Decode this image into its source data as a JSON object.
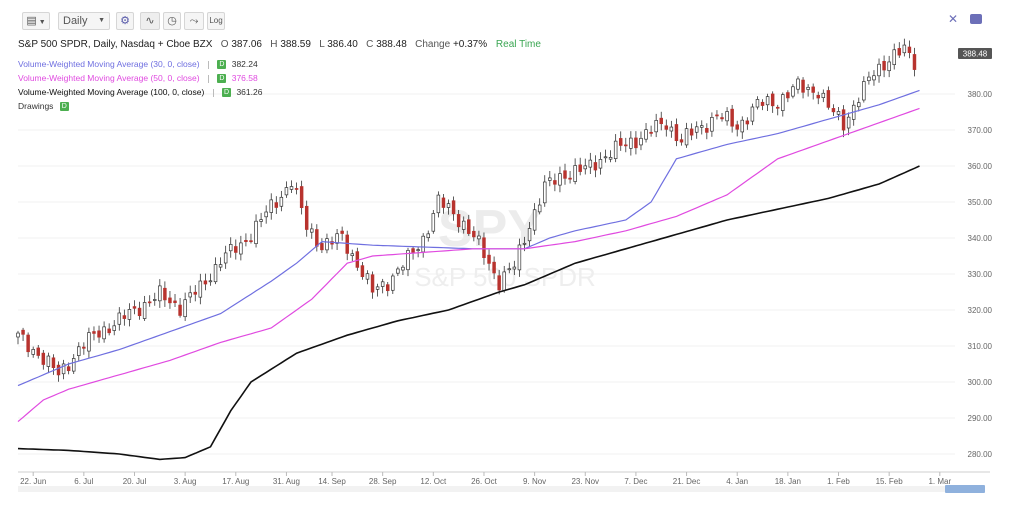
{
  "toolbar": {
    "interval": "Daily",
    "log_label": "Log"
  },
  "header": {
    "symbol": "S&P 500 SPDR, Daily, Nasdaq + Cboe BZX",
    "o_label": "O",
    "o": "387.06",
    "h_label": "H",
    "h": "388.59",
    "l_label": "L",
    "l": "386.40",
    "c_label": "C",
    "c": "388.48",
    "change_label": "Change",
    "change": "+0.37%",
    "realtime": "Real Time"
  },
  "legend": [
    {
      "name": "Volume-Weighted Moving Average (30, 0, close)",
      "value": "382.24",
      "color": "#6f6fe0"
    },
    {
      "name": "Volume-Weighted Moving Average (50, 0, close)",
      "value": "376.58",
      "color": "#e04ae0"
    },
    {
      "name": "Volume-Weighted Moving Average (100, 0, close)",
      "value": "361.26",
      "color": "#111111"
    },
    {
      "name": "Drawings",
      "value": "",
      "color": "#555555"
    }
  ],
  "chart_data": {
    "type": "candlestick",
    "watermark_symbol": "SPY",
    "watermark_name": "S&P 500 SPDR",
    "last_price": "388.48",
    "ylim": [
      275,
      395
    ],
    "y_ticks": [
      280,
      290,
      300,
      310,
      320,
      330,
      340,
      350,
      360,
      370,
      380
    ],
    "y_tick_labels": [
      "280.00",
      "290.00",
      "300.00",
      "310.00",
      "320.00",
      "330.00",
      "340.00",
      "350.00",
      "360.00",
      "370.00",
      "380.00"
    ],
    "x_ticks": [
      "22. Jun",
      "6. Jul",
      "20. Jul",
      "3. Aug",
      "17. Aug",
      "31. Aug",
      "14. Sep",
      "28. Sep",
      "12. Oct",
      "26. Oct",
      "9. Nov",
      "23. Nov",
      "7. Dec",
      "21. Dec",
      "4. Jan",
      "18. Jan",
      "1. Feb",
      "15. Feb",
      "1. Mar"
    ],
    "x_tick_index": [
      3,
      13,
      23,
      33,
      43,
      53,
      62,
      72,
      82,
      92,
      102,
      112,
      122,
      132,
      142,
      152,
      162,
      172,
      182
    ],
    "x_count": 186,
    "up_color": "#ffffff",
    "down_color": "#b8332e",
    "candles_anchor_close": [
      [
        0,
        312.5
      ],
      [
        4,
        308
      ],
      [
        8,
        302
      ],
      [
        12,
        309
      ],
      [
        16,
        314
      ],
      [
        20,
        317
      ],
      [
        24,
        321
      ],
      [
        28,
        324
      ],
      [
        32,
        321
      ],
      [
        36,
        326
      ],
      [
        40,
        334
      ],
      [
        44,
        338
      ],
      [
        48,
        345
      ],
      [
        52,
        352
      ],
      [
        54,
        356
      ],
      [
        57,
        343
      ],
      [
        60,
        338
      ],
      [
        64,
        340
      ],
      [
        67,
        333
      ],
      [
        70,
        325
      ],
      [
        73,
        328
      ],
      [
        77,
        334
      ],
      [
        80,
        340
      ],
      [
        83,
        350
      ],
      [
        86,
        347
      ],
      [
        88,
        344
      ],
      [
        91,
        338
      ],
      [
        95,
        328
      ],
      [
        98,
        332
      ],
      [
        101,
        344
      ],
      [
        104,
        354
      ],
      [
        108,
        358
      ],
      [
        112,
        359
      ],
      [
        116,
        363
      ],
      [
        120,
        366
      ],
      [
        124,
        369
      ],
      [
        128,
        372
      ],
      [
        131,
        367
      ],
      [
        134,
        370
      ],
      [
        138,
        374
      ],
      [
        142,
        371
      ],
      [
        146,
        377
      ],
      [
        150,
        378
      ],
      [
        154,
        382
      ],
      [
        158,
        381
      ],
      [
        160,
        376
      ],
      [
        163,
        372
      ],
      [
        166,
        379
      ],
      [
        169,
        386
      ],
      [
        172,
        390
      ],
      [
        175,
        392
      ],
      [
        177,
        389
      ]
    ],
    "series": [
      {
        "name": "Volume-Weighted Moving Average (30, 0, close)",
        "color": "#6f6fe0",
        "anchors": [
          [
            0,
            299
          ],
          [
            10,
            305
          ],
          [
            20,
            309
          ],
          [
            30,
            314
          ],
          [
            40,
            319
          ],
          [
            50,
            328
          ],
          [
            55,
            333
          ],
          [
            60,
            339
          ],
          [
            65,
            338.5
          ],
          [
            70,
            338
          ],
          [
            80,
            337.5
          ],
          [
            90,
            337
          ],
          [
            100,
            337
          ],
          [
            105,
            340
          ],
          [
            110,
            342
          ],
          [
            120,
            345
          ],
          [
            125,
            350
          ],
          [
            130,
            362
          ],
          [
            140,
            366
          ],
          [
            150,
            369
          ],
          [
            160,
            373
          ],
          [
            170,
            377
          ],
          [
            178,
            381
          ]
        ]
      },
      {
        "name": "Volume-Weighted Moving Average (50, 0, close)",
        "color": "#e04ae0",
        "anchors": [
          [
            0,
            289
          ],
          [
            5,
            295
          ],
          [
            10,
            298
          ],
          [
            20,
            302
          ],
          [
            30,
            306
          ],
          [
            40,
            311
          ],
          [
            50,
            315
          ],
          [
            58,
            323
          ],
          [
            65,
            333
          ],
          [
            70,
            335
          ],
          [
            80,
            336
          ],
          [
            90,
            337
          ],
          [
            100,
            337
          ],
          [
            105,
            338
          ],
          [
            110,
            339
          ],
          [
            120,
            342
          ],
          [
            130,
            346
          ],
          [
            140,
            352
          ],
          [
            150,
            362
          ],
          [
            160,
            367
          ],
          [
            170,
            372
          ],
          [
            178,
            376
          ]
        ]
      },
      {
        "name": "Volume-Weighted Moving Average (100, 0, close)",
        "color": "#111111",
        "anchors": [
          [
            0,
            281.5
          ],
          [
            10,
            281
          ],
          [
            20,
            280
          ],
          [
            28,
            278.5
          ],
          [
            33,
            279
          ],
          [
            38,
            282
          ],
          [
            42,
            292
          ],
          [
            46,
            300
          ],
          [
            55,
            308
          ],
          [
            65,
            313
          ],
          [
            75,
            317
          ],
          [
            85,
            320
          ],
          [
            95,
            325
          ],
          [
            100,
            327
          ],
          [
            105,
            330
          ],
          [
            110,
            333
          ],
          [
            120,
            337
          ],
          [
            130,
            341
          ],
          [
            140,
            345
          ],
          [
            150,
            348
          ],
          [
            160,
            351
          ],
          [
            170,
            355
          ],
          [
            178,
            360
          ]
        ]
      }
    ]
  }
}
